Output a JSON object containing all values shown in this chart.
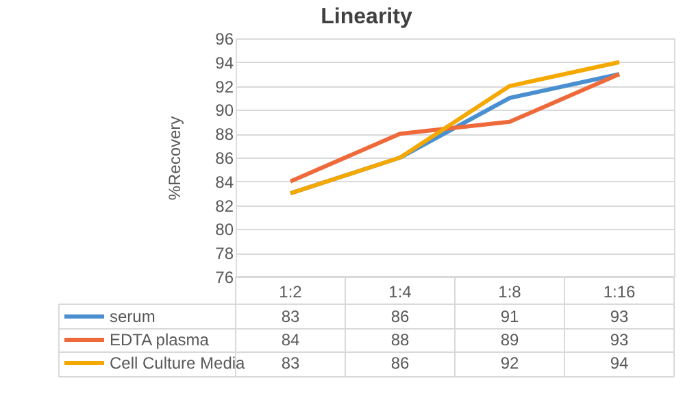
{
  "chart_data": {
    "type": "line",
    "title": "Linearity",
    "ylabel": "%Recovery",
    "categories": [
      "1:2",
      "1:4",
      "1:8",
      "1:16"
    ],
    "series": [
      {
        "name": "serum",
        "color": "#4a90d0",
        "values": [
          83,
          86,
          91,
          93
        ]
      },
      {
        "name": "EDTA plasma",
        "color": "#ee6a3a",
        "values": [
          84,
          88,
          89,
          93
        ]
      },
      {
        "name": "Cell Culture Media",
        "color": "#f5a800",
        "values": [
          83,
          86,
          92,
          94
        ]
      }
    ],
    "ylim": [
      76,
      96
    ],
    "yticks": [
      76,
      78,
      80,
      82,
      84,
      86,
      88,
      90,
      92,
      94,
      96
    ],
    "grid": "y",
    "legend": "bottom",
    "data_labels": true,
    "line_style": "solid",
    "marker": "none"
  }
}
